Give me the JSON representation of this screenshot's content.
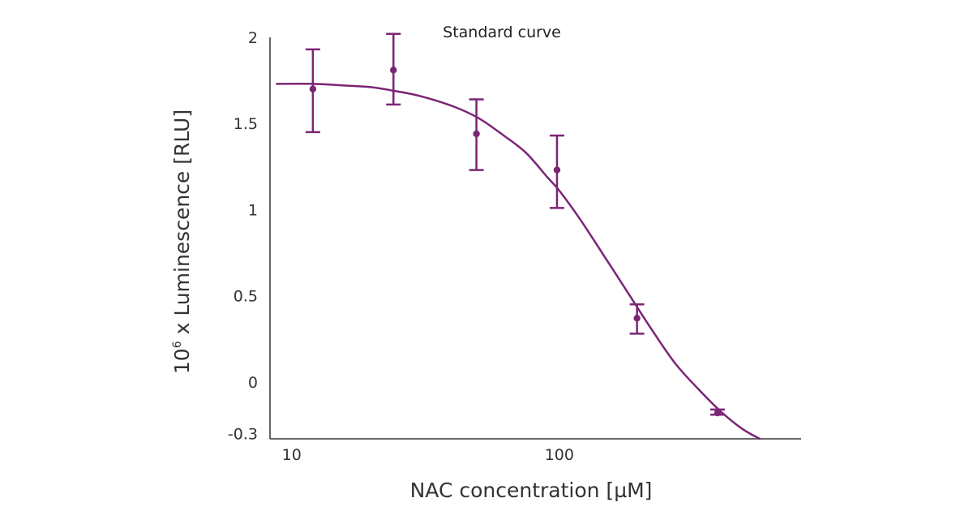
{
  "chart_data": {
    "type": "scatter",
    "title": "Standard curve",
    "xlabel": "NAC concentration [µM]",
    "ylabel": {
      "base": "10",
      "exponent": "6",
      "rest": " x Luminescence [RLU]"
    },
    "x_scale": "log",
    "xlim": [
      8.3,
      800
    ],
    "ylim": [
      -0.33,
      2
    ],
    "x_ticks": [
      {
        "value": 10,
        "label": "10"
      },
      {
        "value": 100,
        "label": "100"
      }
    ],
    "y_ticks": [
      {
        "value": 2,
        "label": "2"
      },
      {
        "value": 1.5,
        "label": "1.5"
      },
      {
        "value": 1,
        "label": "1"
      },
      {
        "value": 0.5,
        "label": "0.5"
      },
      {
        "value": 0,
        "label": "0"
      },
      {
        "value": -0.3,
        "label": "-0.3"
      }
    ],
    "grid": false,
    "color": "#7b2576",
    "points": [
      {
        "x": 12,
        "y": 1.7,
        "err_low": 1.45,
        "err_high": 1.93
      },
      {
        "x": 24,
        "y": 1.81,
        "err_low": 1.61,
        "err_high": 2.02
      },
      {
        "x": 49,
        "y": 1.44,
        "err_low": 1.23,
        "err_high": 1.64
      },
      {
        "x": 98,
        "y": 1.23,
        "err_low": 1.01,
        "err_high": 1.43
      },
      {
        "x": 195,
        "y": 0.37,
        "err_low": 0.28,
        "err_high": 0.45
      },
      {
        "x": 390,
        "y": -0.18,
        "err_low": -0.19,
        "err_high": -0.16
      }
    ],
    "fit_curve": {
      "x": [
        8.8,
        12,
        16,
        20,
        24,
        30,
        40,
        50,
        62,
        75,
        90,
        100,
        120,
        150,
        180,
        220,
        270,
        330,
        400,
        480,
        560
      ],
      "y": [
        1.73,
        1.73,
        1.72,
        1.71,
        1.69,
        1.66,
        1.6,
        1.53,
        1.43,
        1.33,
        1.19,
        1.11,
        0.94,
        0.71,
        0.52,
        0.31,
        0.11,
        -0.04,
        -0.17,
        -0.27,
        -0.33
      ]
    }
  }
}
